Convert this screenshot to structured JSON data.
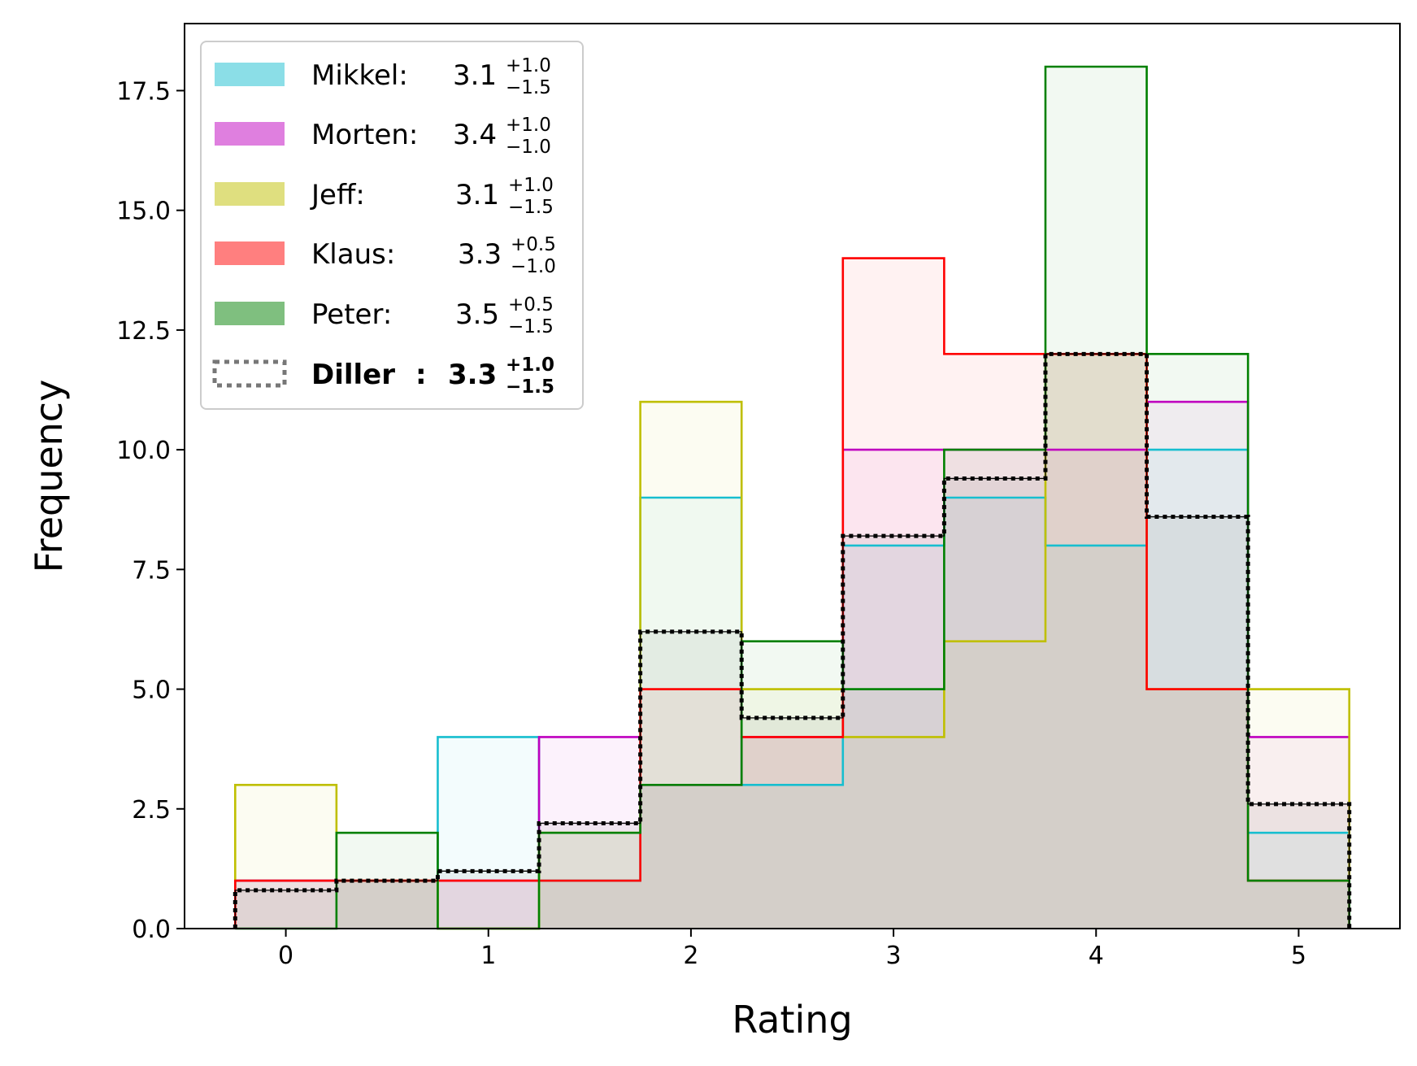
{
  "chart_data": {
    "type": "histogram",
    "xlabel": "Rating",
    "ylabel": "Frequency",
    "xlim": [
      -0.5,
      5.5
    ],
    "ylim": [
      0,
      18.9
    ],
    "xticks": [
      0,
      1,
      2,
      3,
      4,
      5
    ],
    "yticks": [
      0.0,
      2.5,
      5.0,
      7.5,
      10.0,
      12.5,
      15.0,
      17.5
    ],
    "ytick_labels": [
      "0.0",
      "2.5",
      "5.0",
      "7.5",
      "10.0",
      "12.5",
      "15.0",
      "17.5"
    ],
    "bin_edges": [
      -0.25,
      0.25,
      0.75,
      1.25,
      1.75,
      2.25,
      2.75,
      3.25,
      3.75,
      4.25,
      4.75,
      5.25
    ],
    "legend_position": "upper-left",
    "grid": false,
    "series": [
      {
        "name": "Mikkel:",
        "stat_value": "3.1",
        "stat_plus": "+1.0",
        "stat_minus": "−1.5",
        "color": "#17becf",
        "values": [
          1,
          1,
          4,
          1,
          9,
          3,
          8,
          9,
          8,
          10,
          2
        ]
      },
      {
        "name": "Morten:",
        "stat_value": "3.4",
        "stat_plus": "+1.0",
        "stat_minus": "−1.0",
        "color": "#bf00bf",
        "values": [
          1,
          1,
          1,
          4,
          3,
          4,
          10,
          10,
          10,
          11,
          4
        ]
      },
      {
        "name": "Jeff:",
        "stat_value": "3.1",
        "stat_plus": "+1.0",
        "stat_minus": "−1.5",
        "color": "#bfbf00",
        "values": [
          3,
          1,
          0,
          2,
          11,
          5,
          4,
          6,
          12,
          5,
          5
        ]
      },
      {
        "name": "Klaus:",
        "stat_value": "3.3",
        "stat_plus": "+0.5",
        "stat_minus": "−1.0",
        "color": "#ff0000",
        "values": [
          1,
          1,
          1,
          1,
          5,
          4,
          14,
          12,
          12,
          5,
          1
        ]
      },
      {
        "name": "Peter:",
        "stat_value": "3.5",
        "stat_plus": "+0.5",
        "stat_minus": "−1.5",
        "color": "#008000",
        "values": [
          0,
          2,
          0,
          2,
          3,
          6,
          5,
          10,
          18,
          12,
          1
        ]
      },
      {
        "name": "Diller",
        "stat_value": "3.3",
        "stat_plus": "+1.0",
        "stat_minus": "−1.5",
        "color": "#000000",
        "values": [
          0.8,
          1.0,
          1.2,
          2.2,
          6.2,
          4.4,
          8.2,
          9.4,
          12.0,
          8.6,
          2.6
        ]
      }
    ]
  }
}
